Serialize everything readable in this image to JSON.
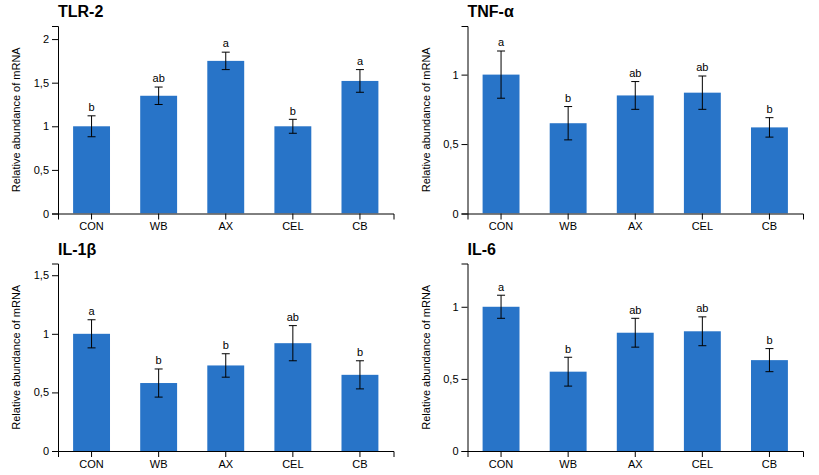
{
  "chart_data": [
    {
      "type": "bar",
      "title": "TLR-2",
      "categories": [
        "CON",
        "WB",
        "AX",
        "CEL",
        "CB"
      ],
      "values": [
        1.0,
        1.35,
        1.75,
        1.0,
        1.52
      ],
      "errors": [
        0.12,
        0.1,
        0.1,
        0.08,
        0.13
      ],
      "annotations": [
        "b",
        "ab",
        "a",
        "b",
        "a"
      ],
      "color": "#2874C8",
      "ylabel": "Relative abundance of mRNA",
      "ylim": [
        0,
        2.15
      ],
      "yticks": [
        0,
        {
          "value": 0.5,
          "label": "0,5"
        },
        1,
        {
          "value": 1.5,
          "label": "1,5"
        },
        2
      ],
      "grid": false
    },
    {
      "type": "bar",
      "title": "TNF-α",
      "categories": [
        "CON",
        "WB",
        "AX",
        "CEL",
        "CB"
      ],
      "values": [
        1.0,
        0.65,
        0.85,
        0.87,
        0.62
      ],
      "errors": [
        0.17,
        0.12,
        0.1,
        0.12,
        0.07
      ],
      "annotations": [
        "a",
        "b",
        "ab",
        "ab",
        "b"
      ],
      "color": "#2874C8",
      "ylabel": "Relative abundance of mRNA",
      "ylim": [
        0,
        1.35
      ],
      "yticks": [
        0,
        {
          "value": 0.5,
          "label": "0,5"
        },
        1
      ],
      "grid": false
    },
    {
      "type": "bar",
      "title": "IL-1β",
      "categories": [
        "CON",
        "WB",
        "AX",
        "CEL",
        "CB"
      ],
      "values": [
        1.0,
        0.58,
        0.73,
        0.92,
        0.65
      ],
      "errors": [
        0.12,
        0.12,
        0.1,
        0.15,
        0.12
      ],
      "annotations": [
        "a",
        "b",
        "b",
        "ab",
        "b"
      ],
      "color": "#2874C8",
      "ylabel": "Relative abundance of mRNA",
      "ylim": [
        0,
        1.6
      ],
      "yticks": [
        0,
        {
          "value": 0.5,
          "label": "0,5"
        },
        1,
        {
          "value": 1.5,
          "label": "1,5"
        }
      ],
      "grid": false
    },
    {
      "type": "bar",
      "title": "IL-6",
      "categories": [
        "CON",
        "WB",
        "AX",
        "CEL",
        "CB"
      ],
      "values": [
        1.0,
        0.55,
        0.82,
        0.83,
        0.63
      ],
      "errors": [
        0.08,
        0.1,
        0.1,
        0.1,
        0.08
      ],
      "annotations": [
        "a",
        "b",
        "ab",
        "ab",
        "b"
      ],
      "color": "#2874C8",
      "ylabel": "Relative abundance of mRNA",
      "ylim": [
        0,
        1.3
      ],
      "yticks": [
        0,
        {
          "value": 0.5,
          "label": "0,5"
        },
        1
      ],
      "grid": false
    }
  ]
}
